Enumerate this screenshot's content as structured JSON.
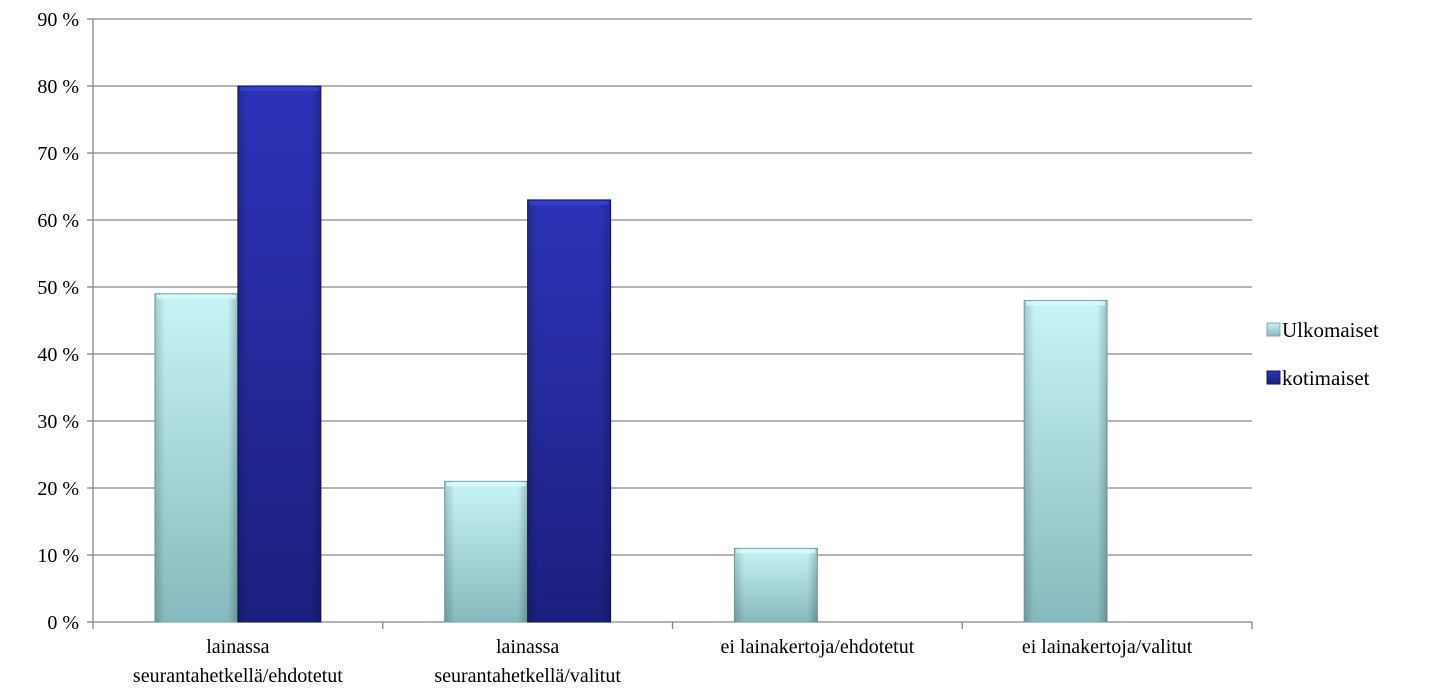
{
  "chart_data": {
    "type": "bar",
    "categories": [
      [
        "lainassa",
        "seurantahetkellä/ehdotetut"
      ],
      [
        "lainassa",
        "seurantahetkellä/valitut"
      ],
      [
        "ei lainakertoja/ehdotetut"
      ],
      [
        "ei lainakertoja/valitut"
      ]
    ],
    "series": [
      {
        "name": "Ulkomaiset",
        "values": [
          49,
          21,
          11,
          48
        ],
        "color": "#a9dfe3"
      },
      {
        "name": "kotimaiset",
        "values": [
          80,
          63,
          null,
          null
        ],
        "color": "#2b2fa6"
      }
    ],
    "ylim": [
      0,
      90
    ],
    "yticks": [
      0,
      10,
      20,
      30,
      40,
      50,
      60,
      70,
      80,
      90
    ],
    "ytick_labels": [
      "0 %",
      "10 %",
      "20 %",
      "30 %",
      "40 %",
      "50 %",
      "60 %",
      "70 %",
      "80 %",
      "90 %"
    ],
    "grid": true,
    "legend_position": "right"
  }
}
